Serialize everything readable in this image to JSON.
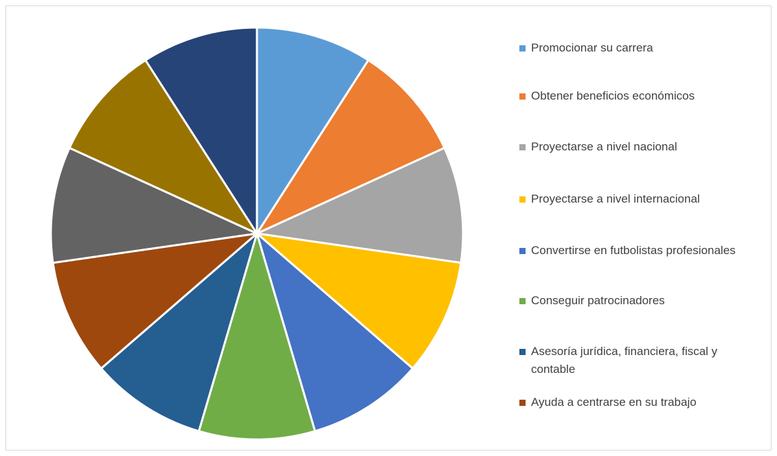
{
  "chart_data": {
    "type": "pie",
    "categories": [
      "Promocionar su carrera",
      "Obtener beneficios económicos",
      "Proyectarse a nivel nacional",
      "Proyectarse a nivel internacional",
      "Convertirse en futbolistas profesionales",
      "Conseguir patrocinadores",
      "Asesoría jurídica, financiera, fiscal y contable",
      "Ayuda a centrarse en su trabajo",
      null,
      null,
      null
    ],
    "values": [
      1,
      1,
      1,
      1,
      1,
      1,
      1,
      1,
      1,
      1,
      1
    ],
    "colors": [
      "#5b9bd5",
      "#ed7d31",
      "#a5a5a5",
      "#ffc000",
      "#4472c4",
      "#70ad47",
      "#255e91",
      "#9e480e",
      "#636363",
      "#997300",
      "#264478"
    ],
    "legend": "right"
  }
}
